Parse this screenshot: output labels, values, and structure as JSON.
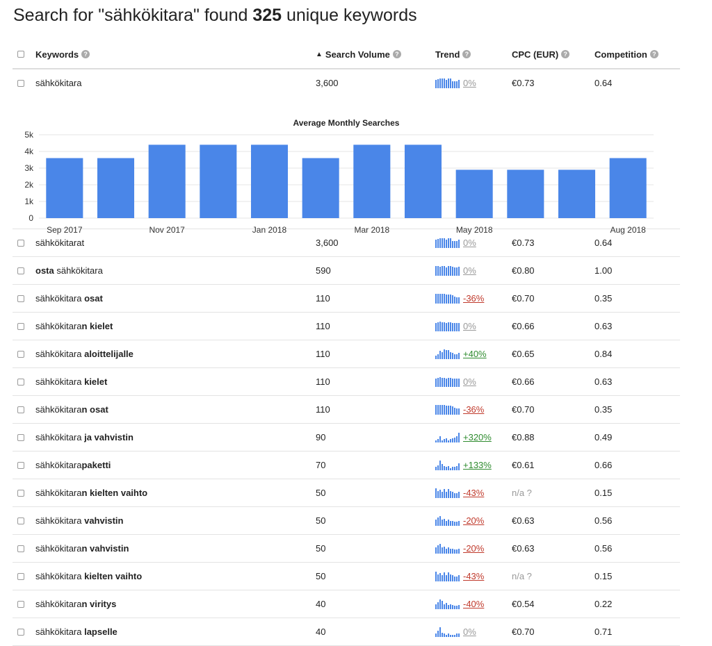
{
  "heading": {
    "prefix": "Search for \"sähkökitara\" found ",
    "count": "325",
    "suffix": " unique keywords"
  },
  "columns": {
    "keywords": "Keywords",
    "volume": "Search Volume",
    "trend": "Trend",
    "cpc": "CPC (EUR)",
    "competition": "Competition"
  },
  "colors": {
    "bar": "#4a86e8",
    "negative": "#c0392b",
    "positive": "#2e8b2e",
    "neutral": "#999999"
  },
  "icons": {
    "help": "question-circle-icon",
    "sort": "sort-asc-icon",
    "checkbox": "checkbox-icon"
  },
  "top_row": {
    "kw_plain": "sähkökitara",
    "kw_bold": "",
    "kw_after": "",
    "volume": "3,600",
    "trend": "0%",
    "trend_type": "zero",
    "cpc": "€0.73",
    "competition": "0.64"
  },
  "chart_data": {
    "type": "bar",
    "title": "Average Monthly Searches",
    "categories": [
      "Sep 2017",
      "Oct 2017",
      "Nov 2017",
      "Dec 2017",
      "Jan 2018",
      "Feb 2018",
      "Mar 2018",
      "Apr 2018",
      "May 2018",
      "Jun 2018",
      "Jul 2018",
      "Aug 2018"
    ],
    "x_tick_labels": [
      "Sep 2017",
      "",
      "Nov 2017",
      "",
      "Jan 2018",
      "",
      "Mar 2018",
      "",
      "May 2018",
      "",
      "",
      "Aug 2018"
    ],
    "values": [
      3600,
      3600,
      4400,
      4400,
      4400,
      3600,
      4400,
      4400,
      2900,
      2900,
      2900,
      3600
    ],
    "y_ticks": [
      "0",
      "1k",
      "2k",
      "3k",
      "4k",
      "5k"
    ],
    "ylim": [
      0,
      5000
    ],
    "grid": true
  },
  "rows": [
    {
      "kw_plain": "sähkökitarat",
      "kw_bold": "",
      "kw_after": "",
      "kw_lead_bold": "",
      "volume": "3,600",
      "trend": "0%",
      "trend_type": "zero",
      "cpc": "€0.73",
      "competition": "0.64",
      "spark": [
        8,
        9,
        10,
        10,
        10,
        8,
        10,
        10,
        7,
        7,
        7,
        8
      ]
    },
    {
      "kw_lead_bold": "osta",
      "kw_plain": " sähkökitara",
      "kw_bold": "",
      "kw_after": "",
      "volume": "590",
      "trend": "0%",
      "trend_type": "zero",
      "cpc": "€0.80",
      "competition": "1.00",
      "spark": [
        10,
        10,
        9,
        10,
        10,
        8,
        10,
        10,
        9,
        8,
        8,
        9
      ]
    },
    {
      "kw_lead_bold": "",
      "kw_plain": "sähkökitara ",
      "kw_bold": "osat",
      "kw_after": "",
      "volume": "110",
      "trend": "-36%",
      "trend_type": "neg",
      "cpc": "€0.70",
      "competition": "0.35",
      "spark": [
        10,
        10,
        10,
        10,
        10,
        9,
        9,
        9,
        8,
        7,
        6,
        6
      ]
    },
    {
      "kw_lead_bold": "",
      "kw_plain": "sähkökitara",
      "kw_bold": "n kielet",
      "kw_after": "",
      "volume": "110",
      "trend": "0%",
      "trend_type": "zero",
      "cpc": "€0.66",
      "competition": "0.63",
      "spark": [
        8,
        9,
        10,
        9,
        9,
        8,
        9,
        9,
        8,
        8,
        8,
        8
      ]
    },
    {
      "kw_lead_bold": "",
      "kw_plain": "sähkökitara ",
      "kw_bold": "aloittelijalle",
      "kw_after": "",
      "volume": "110",
      "trend": "+40%",
      "trend_type": "pos",
      "cpc": "€0.65",
      "competition": "0.84",
      "spark": [
        3,
        5,
        8,
        7,
        10,
        9,
        9,
        7,
        6,
        5,
        5,
        6
      ]
    },
    {
      "kw_lead_bold": "",
      "kw_plain": "sähkökitara ",
      "kw_bold": "kielet",
      "kw_after": "",
      "volume": "110",
      "trend": "0%",
      "trend_type": "zero",
      "cpc": "€0.66",
      "competition": "0.63",
      "spark": [
        8,
        9,
        10,
        9,
        9,
        8,
        9,
        9,
        8,
        8,
        8,
        8
      ]
    },
    {
      "kw_lead_bold": "",
      "kw_plain": "sähkökitara",
      "kw_bold": "n osat",
      "kw_after": "",
      "volume": "110",
      "trend": "-36%",
      "trend_type": "neg",
      "cpc": "€0.70",
      "competition": "0.35",
      "spark": [
        10,
        10,
        10,
        10,
        10,
        9,
        9,
        9,
        8,
        7,
        6,
        6
      ]
    },
    {
      "kw_lead_bold": "",
      "kw_plain": "sähkökitara ",
      "kw_bold": "ja vahvistin",
      "kw_after": "",
      "volume": "90",
      "trend": "+320%",
      "trend_type": "pos",
      "cpc": "€0.88",
      "competition": "0.49",
      "spark": [
        2,
        3,
        6,
        2,
        3,
        4,
        2,
        3,
        4,
        5,
        6,
        10
      ]
    },
    {
      "kw_lead_bold": "",
      "kw_plain": "sähkökitara",
      "kw_bold": "paketti",
      "kw_after": "",
      "volume": "70",
      "trend": "+133%",
      "trend_type": "pos",
      "cpc": "€0.61",
      "competition": "0.66",
      "spark": [
        3,
        5,
        10,
        6,
        4,
        3,
        4,
        2,
        3,
        3,
        4,
        7
      ]
    },
    {
      "kw_lead_bold": "",
      "kw_plain": "sähkökitara",
      "kw_bold": "n kielten vaihto",
      "kw_after": "",
      "volume": "50",
      "trend": "-43%",
      "trend_type": "neg",
      "cpc": "n/a ?",
      "competition": "0.15",
      "spark": [
        10,
        7,
        8,
        6,
        9,
        6,
        9,
        7,
        6,
        5,
        5,
        6
      ]
    },
    {
      "kw_lead_bold": "",
      "kw_plain": "sähkökitara ",
      "kw_bold": "vahvistin",
      "kw_after": "",
      "volume": "50",
      "trend": "-20%",
      "trend_type": "neg",
      "cpc": "€0.63",
      "competition": "0.56",
      "spark": [
        6,
        8,
        10,
        6,
        7,
        5,
        6,
        5,
        5,
        4,
        4,
        5
      ]
    },
    {
      "kw_lead_bold": "",
      "kw_plain": "sähkökitara",
      "kw_bold": "n vahvistin",
      "kw_after": "",
      "volume": "50",
      "trend": "-20%",
      "trend_type": "neg",
      "cpc": "€0.63",
      "competition": "0.56",
      "spark": [
        6,
        8,
        10,
        6,
        7,
        5,
        6,
        5,
        5,
        4,
        4,
        5
      ]
    },
    {
      "kw_lead_bold": "",
      "kw_plain": "sähkökitara ",
      "kw_bold": "kielten vaihto",
      "kw_after": "",
      "volume": "50",
      "trend": "-43%",
      "trend_type": "neg",
      "cpc": "n/a ?",
      "competition": "0.15",
      "spark": [
        10,
        7,
        8,
        6,
        9,
        6,
        9,
        7,
        6,
        5,
        5,
        6
      ]
    },
    {
      "kw_lead_bold": "",
      "kw_plain": "sähkökitara",
      "kw_bold": "n viritys",
      "kw_after": "",
      "volume": "40",
      "trend": "-40%",
      "trend_type": "neg",
      "cpc": "€0.54",
      "competition": "0.22",
      "spark": [
        5,
        7,
        10,
        8,
        5,
        6,
        4,
        5,
        4,
        3,
        3,
        4
      ]
    },
    {
      "kw_lead_bold": "",
      "kw_plain": "sähkökitara ",
      "kw_bold": "lapselle",
      "kw_after": "",
      "volume": "40",
      "trend": "0%",
      "trend_type": "zero",
      "cpc": "€0.70",
      "competition": "0.71",
      "spark": [
        3,
        6,
        10,
        4,
        3,
        2,
        3,
        2,
        2,
        2,
        3,
        3
      ]
    }
  ]
}
